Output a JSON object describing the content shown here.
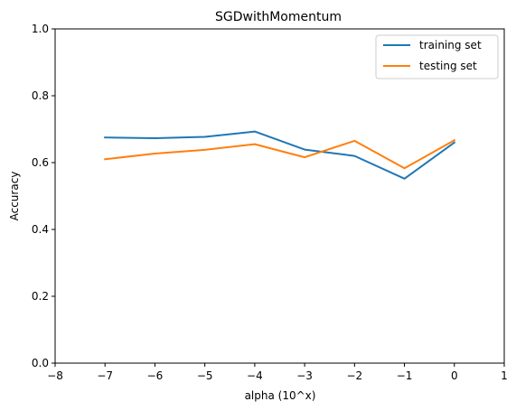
{
  "chart_data": {
    "type": "line",
    "title": "SGDwithMomentum",
    "xlabel": "alpha (10^x)",
    "ylabel": "Accuracy",
    "xlim": [
      -8,
      1
    ],
    "ylim": [
      0.0,
      1.0
    ],
    "xticks": [
      "−8",
      "−7",
      "−6",
      "−5",
      "−4",
      "−3",
      "−2",
      "−1",
      "0",
      "1"
    ],
    "xtick_values": [
      -8,
      -7,
      -6,
      -5,
      -4,
      -3,
      -2,
      -1,
      0,
      1
    ],
    "yticks": [
      "0.0",
      "0.2",
      "0.4",
      "0.6",
      "0.8",
      "1.0"
    ],
    "ytick_values": [
      0.0,
      0.2,
      0.4,
      0.6,
      0.8,
      1.0
    ],
    "grid": false,
    "legend_position": "upper right",
    "x": [
      -7,
      -6,
      -5,
      -4,
      -3,
      -2,
      -1,
      0
    ],
    "series": [
      {
        "name": "training set",
        "color": "#1f77b4",
        "values": [
          0.675,
          0.673,
          0.677,
          0.693,
          0.639,
          0.62,
          0.552,
          0.66
        ]
      },
      {
        "name": "testing set",
        "color": "#ff7f0e",
        "values": [
          0.61,
          0.627,
          0.638,
          0.655,
          0.616,
          0.665,
          0.583,
          0.667
        ]
      }
    ]
  }
}
